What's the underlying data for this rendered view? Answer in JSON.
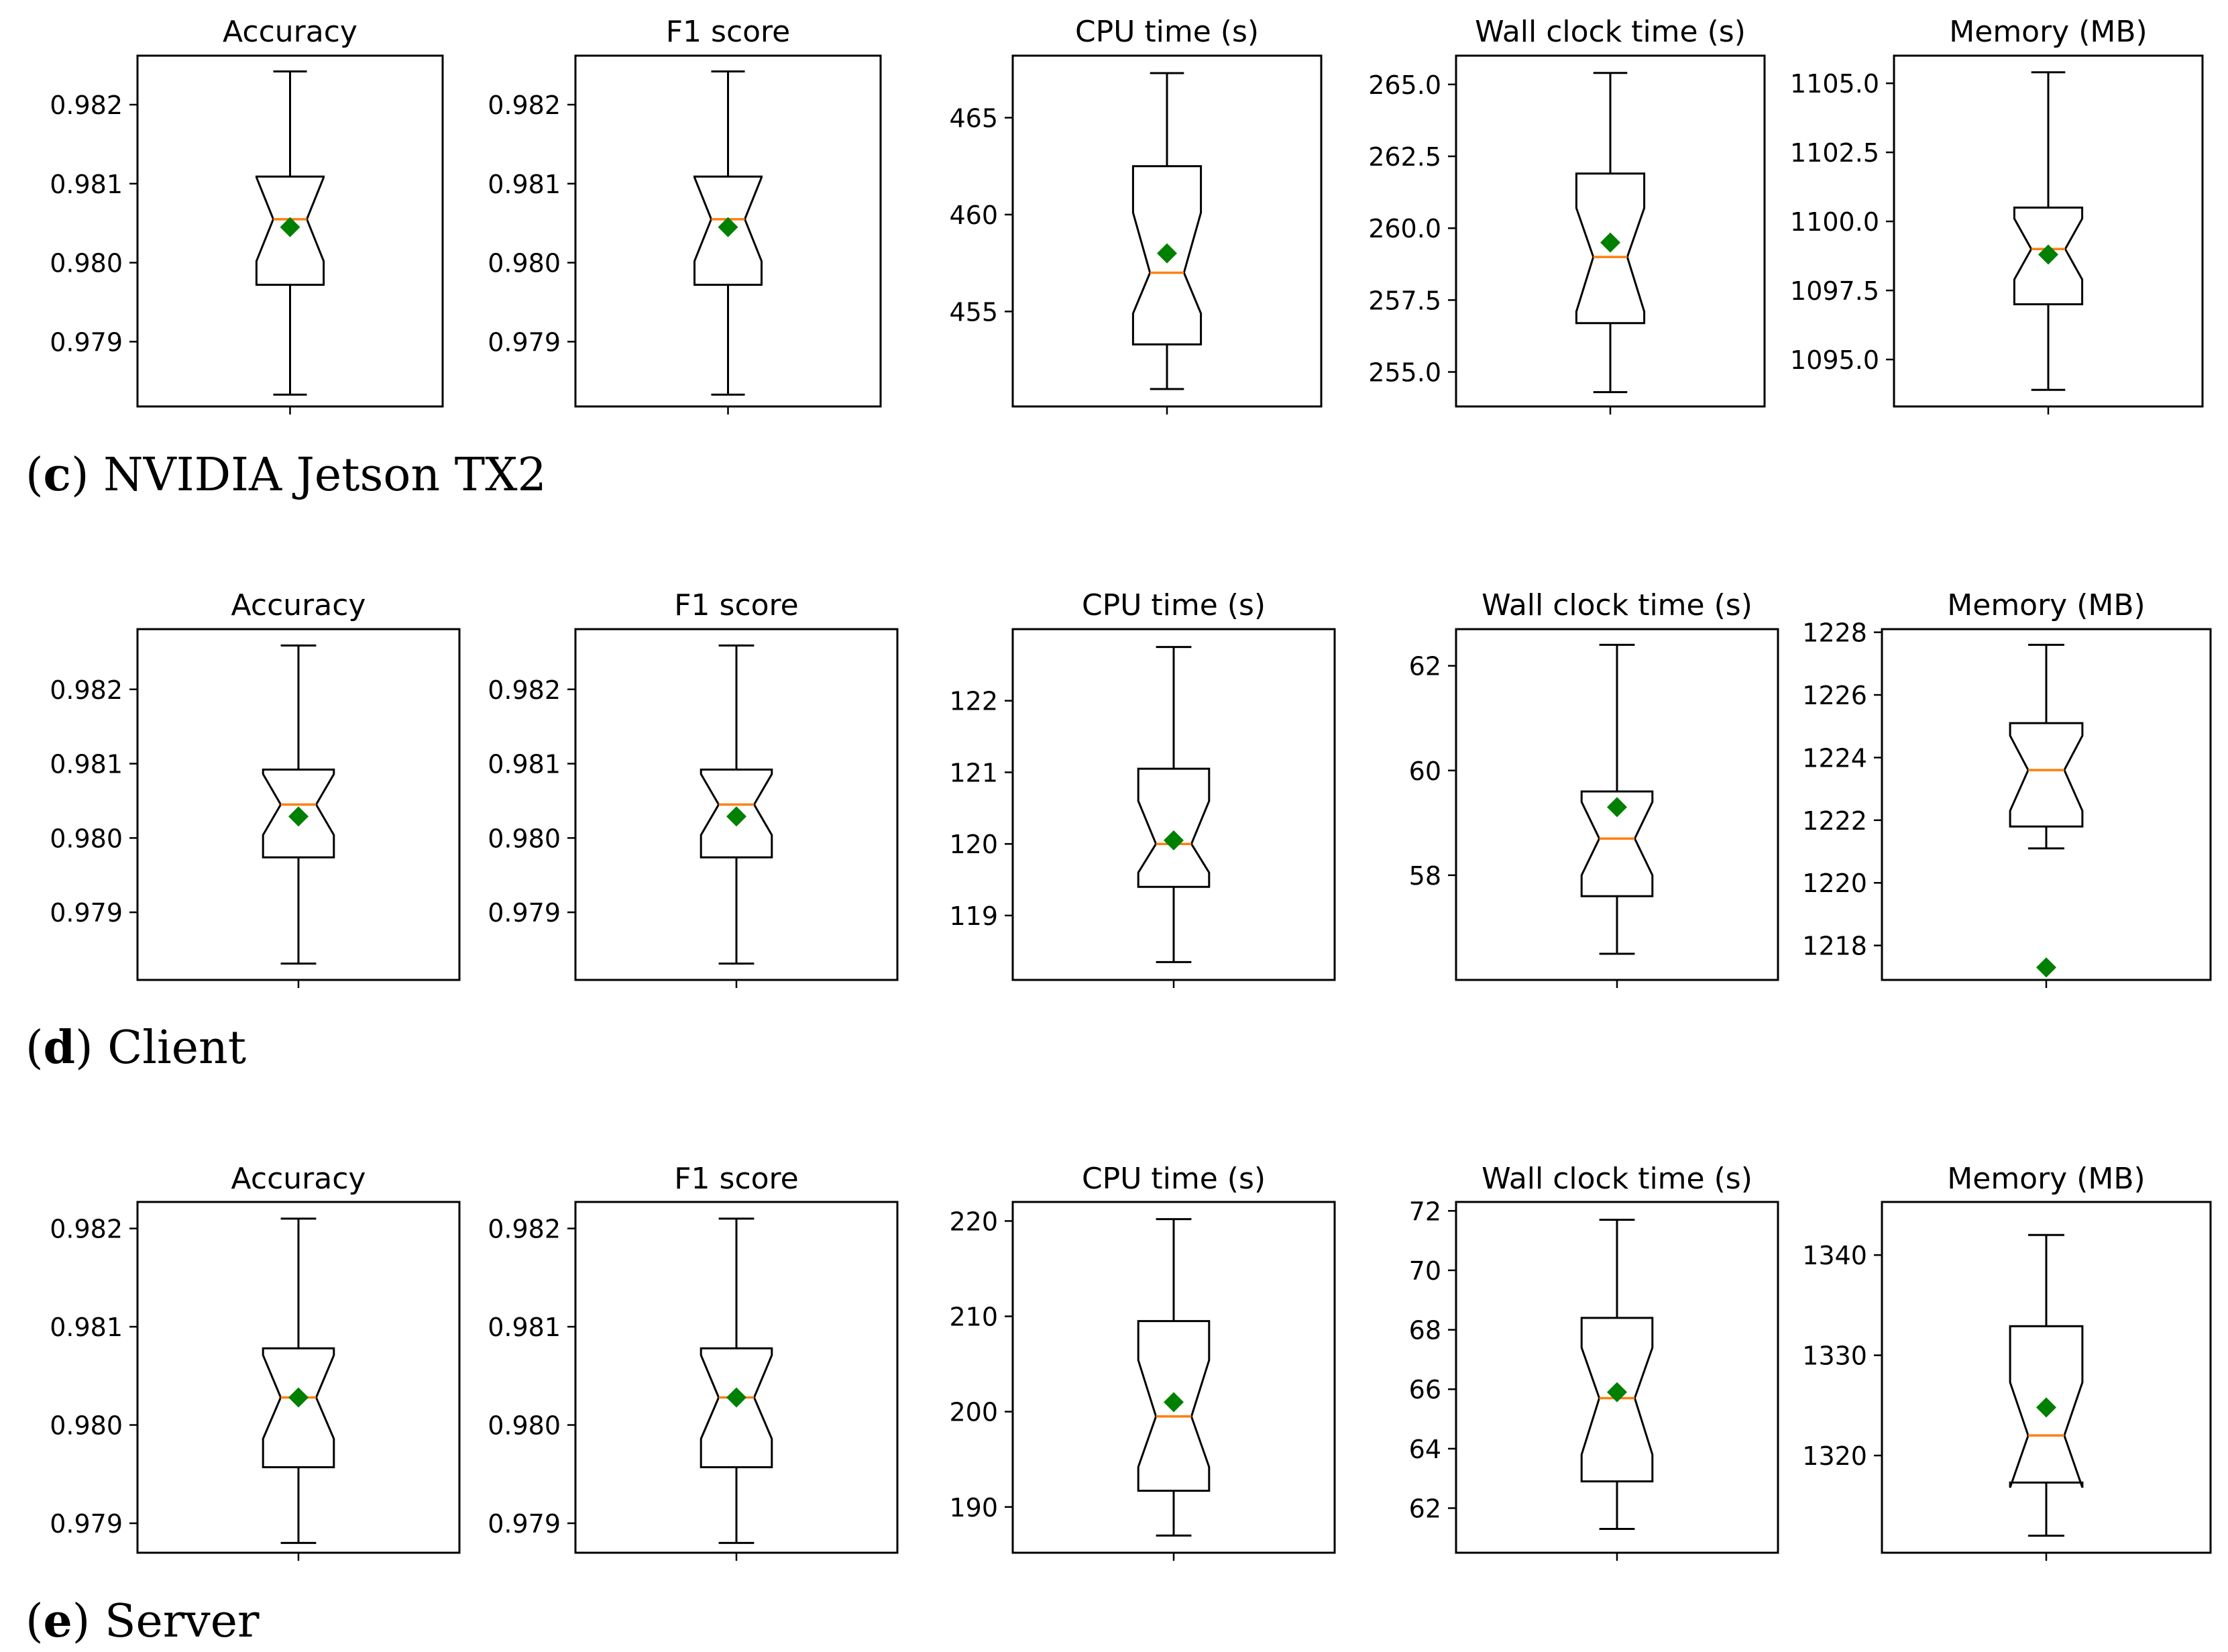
{
  "colors": {
    "box": "#000000",
    "median": "#ff7f0e",
    "mean": "#008000",
    "background": "#ffffff"
  },
  "rows": [
    {
      "caption_letter": "c",
      "caption_text": "NVIDIA Jetson TX2",
      "panels": [
        {
          "title": "Accuracy",
          "ticks": [
            "0.979",
            "0.980",
            "0.981",
            "0.982"
          ]
        },
        {
          "title": "F1 score",
          "ticks": [
            "0.979",
            "0.980",
            "0.981",
            "0.982"
          ]
        },
        {
          "title": "CPU time (s)",
          "ticks": [
            "455",
            "460",
            "465"
          ]
        },
        {
          "title": "Wall clock time (s)",
          "ticks": [
            "255.0",
            "257.5",
            "260.0",
            "262.5",
            "265.0"
          ]
        },
        {
          "title": "Memory (MB)",
          "ticks": [
            "1095.0",
            "1097.5",
            "1100.0",
            "1102.5",
            "1105.0"
          ]
        }
      ]
    },
    {
      "caption_letter": "d",
      "caption_text": "Client",
      "panels": [
        {
          "title": "Accuracy",
          "ticks": [
            "0.979",
            "0.980",
            "0.981",
            "0.982"
          ]
        },
        {
          "title": "F1 score",
          "ticks": [
            "0.979",
            "0.980",
            "0.981",
            "0.982"
          ]
        },
        {
          "title": "CPU time (s)",
          "ticks": [
            "119",
            "120",
            "121",
            "122"
          ]
        },
        {
          "title": "Wall clock time (s)",
          "ticks": [
            "58",
            "60",
            "62"
          ]
        },
        {
          "title": "Memory (MB)",
          "ticks": [
            "1218",
            "1220",
            "1222",
            "1224",
            "1226",
            "1228"
          ]
        }
      ]
    },
    {
      "caption_letter": "e",
      "caption_text": "Server",
      "panels": [
        {
          "title": "Accuracy",
          "ticks": [
            "0.979",
            "0.980",
            "0.981",
            "0.982"
          ]
        },
        {
          "title": "F1 score",
          "ticks": [
            "0.979",
            "0.980",
            "0.981",
            "0.982"
          ]
        },
        {
          "title": "CPU time (s)",
          "ticks": [
            "190",
            "200",
            "210",
            "220"
          ]
        },
        {
          "title": "Wall clock time (s)",
          "ticks": [
            "62",
            "64",
            "66",
            "68",
            "70",
            "72"
          ]
        },
        {
          "title": "Memory (MB)",
          "ticks": [
            "1320",
            "1330",
            "1340"
          ]
        }
      ]
    }
  ],
  "chart_data": [
    {
      "type": "box",
      "group": "NVIDIA Jetson TX2",
      "title": "Accuracy",
      "ylim": [
        0.97818,
        0.98262
      ],
      "whisker_low": 0.97833,
      "q1": 0.97972,
      "median": 0.98055,
      "q3": 0.98109,
      "whisker_high": 0.98242,
      "mean": 0.98045,
      "notch_low": 0.98002,
      "notch_high": 0.98108
    },
    {
      "type": "box",
      "group": "NVIDIA Jetson TX2",
      "title": "F1 score",
      "ylim": [
        0.97818,
        0.98262
      ],
      "whisker_low": 0.97833,
      "q1": 0.97972,
      "median": 0.98055,
      "q3": 0.98109,
      "whisker_high": 0.98242,
      "mean": 0.98045,
      "notch_low": 0.98002,
      "notch_high": 0.98108
    },
    {
      "type": "box",
      "group": "NVIDIA Jetson TX2",
      "title": "CPU time (s)",
      "ylim": [
        450.1,
        468.2
      ],
      "whisker_low": 451.0,
      "q1": 453.3,
      "median": 457.0,
      "q3": 462.5,
      "whisker_high": 467.3,
      "mean": 458.0,
      "notch_low": 454.9,
      "notch_high": 460.1
    },
    {
      "type": "box",
      "group": "NVIDIA Jetson TX2",
      "title": "Wall clock time (s)",
      "ylim": [
        253.8,
        266.0
      ],
      "whisker_low": 254.3,
      "q1": 256.7,
      "median": 259.0,
      "q3": 261.9,
      "whisker_high": 265.4,
      "mean": 259.5,
      "notch_low": 257.1,
      "notch_high": 260.7
    },
    {
      "type": "box",
      "group": "NVIDIA Jetson TX2",
      "title": "Memory (MB)",
      "ylim": [
        1093.3,
        1106.0
      ],
      "whisker_low": 1093.9,
      "q1": 1097.0,
      "median": 1099.0,
      "q3": 1100.5,
      "whisker_high": 1105.4,
      "mean": 1098.8,
      "notch_low": 1097.9,
      "notch_high": 1100.1
    },
    {
      "type": "box",
      "group": "Client",
      "title": "Accuracy",
      "ylim": [
        0.97809,
        0.98281
      ],
      "whisker_low": 0.97831,
      "q1": 0.97974,
      "median": 0.98045,
      "q3": 0.98092,
      "whisker_high": 0.98259,
      "mean": 0.98029,
      "notch_low": 0.98004,
      "notch_high": 0.98086
    },
    {
      "type": "box",
      "group": "Client",
      "title": "F1 score",
      "ylim": [
        0.97809,
        0.98281
      ],
      "whisker_low": 0.97831,
      "q1": 0.97974,
      "median": 0.98045,
      "q3": 0.98092,
      "whisker_high": 0.98259,
      "mean": 0.98029,
      "notch_low": 0.98004,
      "notch_high": 0.98086
    },
    {
      "type": "box",
      "group": "Client",
      "title": "CPU time (s)",
      "ylim": [
        118.1,
        123.0
      ],
      "whisker_low": 118.35,
      "q1": 119.4,
      "median": 120.0,
      "q3": 121.05,
      "whisker_high": 122.75,
      "mean": 120.05,
      "notch_low": 119.6,
      "notch_high": 120.6
    },
    {
      "type": "box",
      "group": "Client",
      "title": "Wall clock time (s)",
      "ylim": [
        56.0,
        62.7
      ],
      "whisker_low": 56.5,
      "q1": 57.6,
      "median": 58.7,
      "q3": 59.6,
      "whisker_high": 62.4,
      "mean": 59.3,
      "notch_low": 58.0,
      "notch_high": 59.4
    },
    {
      "type": "box",
      "group": "Client",
      "title": "Memory (MB)",
      "ylim": [
        1216.9,
        1228.1
      ],
      "whisker_low": 1221.1,
      "q1": 1221.8,
      "median": 1223.6,
      "q3": 1225.1,
      "whisker_high": 1227.6,
      "mean": 1217.3,
      "notch_low": 1222.3,
      "notch_high": 1224.7
    },
    {
      "type": "box",
      "group": "Server",
      "title": "Accuracy",
      "ylim": [
        0.9787,
        0.98227
      ],
      "whisker_low": 0.9788,
      "q1": 0.97957,
      "median": 0.98028,
      "q3": 0.98078,
      "whisker_high": 0.9821,
      "mean": 0.98028,
      "notch_low": 0.97986,
      "notch_high": 0.98071
    },
    {
      "type": "box",
      "group": "Server",
      "title": "F1 score",
      "ylim": [
        0.9787,
        0.98227
      ],
      "whisker_low": 0.9788,
      "q1": 0.97957,
      "median": 0.98028,
      "q3": 0.98078,
      "whisker_high": 0.9821,
      "mean": 0.98028,
      "notch_low": 0.97986,
      "notch_high": 0.98071
    },
    {
      "type": "box",
      "group": "Server",
      "title": "CPU time (s)",
      "ylim": [
        185.2,
        222.0
      ],
      "whisker_low": 187.0,
      "q1": 191.7,
      "median": 199.5,
      "q3": 209.5,
      "whisker_high": 220.2,
      "mean": 201.0,
      "notch_low": 194.2,
      "notch_high": 205.4
    },
    {
      "type": "box",
      "group": "Server",
      "title": "Wall clock time (s)",
      "ylim": [
        60.5,
        72.3
      ],
      "whisker_low": 61.3,
      "q1": 62.9,
      "median": 65.7,
      "q3": 68.4,
      "whisker_high": 71.7,
      "mean": 65.9,
      "notch_low": 63.8,
      "notch_high": 67.4
    },
    {
      "type": "box",
      "group": "Server",
      "title": "Memory (MB)",
      "ylim": [
        1310.3,
        1345.3
      ],
      "whisker_low": 1312.0,
      "q1": 1317.3,
      "median": 1322.0,
      "q3": 1332.9,
      "whisker_high": 1342.0,
      "mean": 1324.8,
      "notch_low": 1316.8,
      "notch_high": 1327.3
    }
  ]
}
